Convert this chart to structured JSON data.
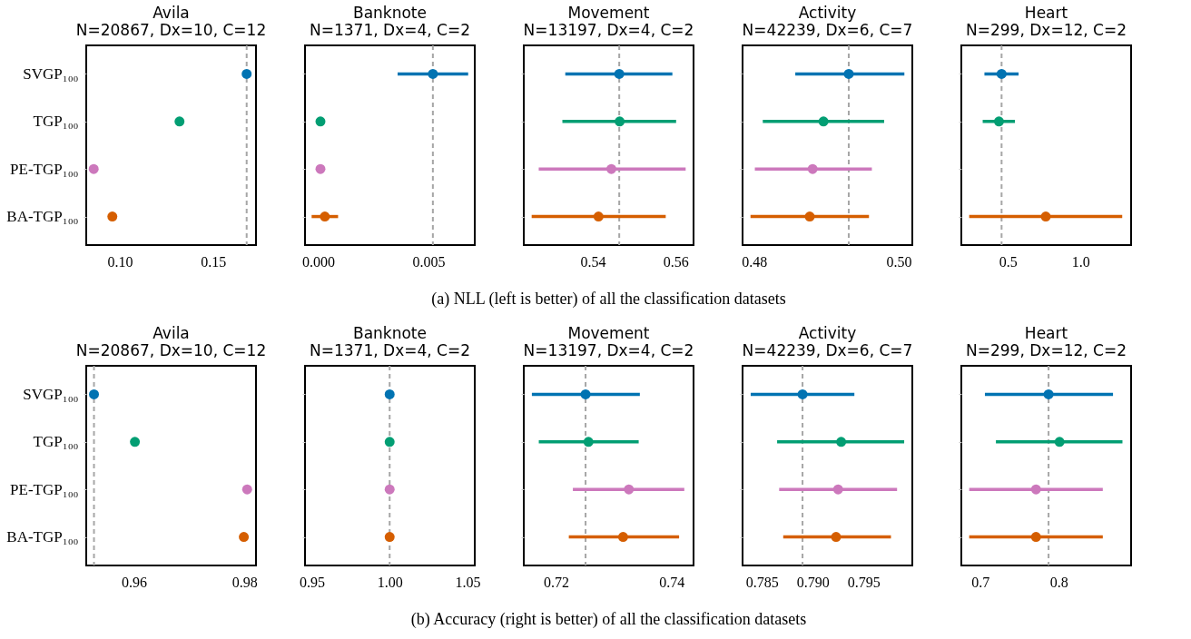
{
  "chart_data": [
    {
      "type": "scatter",
      "title": "Avila",
      "subtitle": "N=20867, Dx=10, C=12",
      "orientation": "horizontal",
      "categories": [
        "SVGP₁₀₀",
        "TGP₁₀₀",
        "PE-TGP₁₀₀",
        "BA-TGP₁₀₀"
      ],
      "values": [
        0.168,
        0.132,
        0.086,
        0.096
      ],
      "colors": [
        "#0173b2",
        "#029e73",
        "#cc78bc",
        "#d55e00"
      ],
      "xlim": [
        0.082,
        0.173
      ],
      "xticks": [
        {
          "value": 0.1,
          "label": "0.10"
        },
        {
          "value": 0.15,
          "label": "0.15"
        }
      ],
      "ref_lines": [
        {
          "axis": "x",
          "value": 0.168,
          "color": "#a6a6a6",
          "line_style": "dashed"
        }
      ],
      "marker": "circle",
      "grid": false
    },
    {
      "type": "scatter",
      "title": "Banknote",
      "subtitle": "N=1371, Dx=4, C=2",
      "orientation": "horizontal",
      "categories": [
        null,
        null,
        null,
        null
      ],
      "values": [
        0.0052,
        0.0001,
        0.0001,
        0.0003
      ],
      "errors": [
        [
          0.0036,
          0.0068
        ],
        null,
        null,
        [
          -0.0003,
          0.0009
        ]
      ],
      "colors": [
        "#0173b2",
        "#029e73",
        "#cc78bc",
        "#d55e00"
      ],
      "xlim": [
        -0.0006,
        0.0071
      ],
      "xticks": [
        {
          "value": 0,
          "label": "0.000"
        },
        {
          "value": 0.005,
          "label": "0.005"
        }
      ],
      "ref_lines": [
        {
          "axis": "x",
          "value": 0.0052,
          "color": "#a6a6a6",
          "line_style": "dashed"
        }
      ],
      "marker": "circle",
      "grid": false,
      "tick_labels": "x"
    },
    {
      "type": "scatter",
      "title": "Movement",
      "subtitle": "N=13197, Dx=4, C=2",
      "orientation": "horizontal",
      "categories": [
        null,
        null,
        null,
        null
      ],
      "values": [
        0.5464,
        0.5465,
        0.5445,
        0.5414
      ],
      "errors": [
        [
          0.5334,
          0.5592
        ],
        [
          0.5327,
          0.5601
        ],
        [
          0.527,
          0.5624
        ],
        [
          0.5253,
          0.5576
        ]
      ],
      "colors": [
        "#0173b2",
        "#029e73",
        "#cc78bc",
        "#d55e00"
      ],
      "xlim": [
        0.5234,
        0.5643
      ],
      "xticks": [
        {
          "value": 0.54,
          "label": "0.54"
        },
        {
          "value": 0.56,
          "label": "0.56"
        }
      ],
      "ref_lines": [
        {
          "axis": "x",
          "value": 0.5464,
          "color": "#a6a6a6",
          "line_style": "dashed"
        }
      ],
      "marker": "circle",
      "grid": false,
      "tick_labels": "x",
      "annotations": [
        "(a) NLL (left is better) of all the classification datasets"
      ]
    },
    {
      "type": "scatter",
      "title": "Activity",
      "subtitle": "N=42239, Dx=6, C=7",
      "orientation": "horizontal",
      "categories": [
        null,
        null,
        null,
        null
      ],
      "values": [
        0.4931,
        0.4896,
        0.4881,
        0.4877
      ],
      "errors": [
        [
          0.4857,
          0.5008
        ],
        [
          0.4812,
          0.498
        ],
        [
          0.4801,
          0.4963
        ],
        [
          0.4795,
          0.4959
        ]
      ],
      "colors": [
        "#0173b2",
        "#029e73",
        "#cc78bc",
        "#d55e00"
      ],
      "xlim": [
        0.4784,
        0.5019
      ],
      "xticks": [
        {
          "value": 0.48,
          "label": "0.48"
        },
        {
          "value": 0.5,
          "label": "0.50"
        }
      ],
      "ref_lines": [
        {
          "axis": "x",
          "value": 0.4931,
          "color": "#a6a6a6",
          "line_style": "dashed"
        }
      ],
      "marker": "circle",
      "grid": false,
      "tick_labels": "x"
    },
    {
      "type": "scatter",
      "title": "Heart",
      "subtitle": "N=299, Dx=12, C=2",
      "orientation": "horizontal",
      "categories": [
        null,
        null,
        null,
        null
      ],
      "values": [
        0.457,
        0.439,
        null,
        0.761
      ],
      "errors": [
        [
          0.339,
          0.574
        ],
        [
          0.327,
          0.549
        ],
        null,
        [
          0.234,
          1.287
        ]
      ],
      "colors": [
        "#0173b2",
        "#029e73",
        "#cc78bc",
        "#d55e00"
      ],
      "xlim": [
        0.18,
        1.348
      ],
      "xticks": [
        {
          "value": 0.5,
          "label": "0.5"
        },
        {
          "value": 1.0,
          "label": "1.0"
        }
      ],
      "ref_lines": [
        {
          "axis": "x",
          "value": 0.457,
          "color": "#a6a6a6",
          "line_style": "dashed"
        }
      ],
      "marker": "circle",
      "grid": false,
      "tick_labels": "x"
    },
    {
      "type": "scatter",
      "title": "Avila",
      "subtitle": "N=20867, Dx=10, C=12",
      "orientation": "horizontal",
      "categories": [
        "SVGP₁₀₀",
        "TGP₁₀₀",
        "PE-TGP₁₀₀",
        "BA-TGP₁₀₀"
      ],
      "values": [
        0.9528,
        0.9602,
        0.9805,
        0.9799
      ],
      "colors": [
        "#0173b2",
        "#029e73",
        "#cc78bc",
        "#d55e00"
      ],
      "xlim": [
        0.9514,
        0.9821
      ],
      "xticks": [
        {
          "value": 0.96,
          "label": "0.96"
        },
        {
          "value": 0.98,
          "label": "0.98"
        }
      ],
      "ref_lines": [
        {
          "axis": "x",
          "value": 0.9528,
          "color": "#a6a6a6",
          "line_style": "dashed"
        }
      ],
      "marker": "circle",
      "grid": false
    },
    {
      "type": "scatter",
      "title": "Banknote",
      "subtitle": "N=1371, Dx=4, C=2",
      "orientation": "horizontal",
      "categories": [
        null,
        null,
        null,
        null
      ],
      "values": [
        1.0,
        1.0,
        1.0,
        1.0
      ],
      "colors": [
        "#0173b2",
        "#029e73",
        "#cc78bc",
        "#d55e00"
      ],
      "xlim": [
        0.9456,
        1.0547
      ],
      "xticks": [
        {
          "value": 0.95,
          "label": "0.95"
        },
        {
          "value": 1.0,
          "label": "1.00"
        },
        {
          "value": 1.05,
          "label": "1.05"
        }
      ],
      "ref_lines": [
        {
          "axis": "x",
          "value": 1.0,
          "color": "#a6a6a6",
          "line_style": "dashed"
        }
      ],
      "marker": "circle",
      "grid": false,
      "tick_labels": "x"
    },
    {
      "type": "scatter",
      "title": "Movement",
      "subtitle": "N=13197, Dx=4, C=2",
      "orientation": "horizontal",
      "categories": [
        null,
        null,
        null,
        null
      ],
      "values": [
        0.7251,
        0.7256,
        0.7326,
        0.7316
      ],
      "errors": [
        [
          0.7158,
          0.7345
        ],
        [
          0.717,
          0.7343
        ],
        [
          0.7229,
          0.7422
        ],
        [
          0.7222,
          0.7413
        ]
      ],
      "colors": [
        "#0173b2",
        "#029e73",
        "#cc78bc",
        "#d55e00"
      ],
      "xlim": [
        0.7144,
        0.7438
      ],
      "xticks": [
        {
          "value": 0.72,
          "label": "0.72"
        },
        {
          "value": 0.74,
          "label": "0.74"
        }
      ],
      "ref_lines": [
        {
          "axis": "x",
          "value": 0.7251,
          "color": "#a6a6a6",
          "line_style": "dashed"
        }
      ],
      "marker": "circle",
      "grid": false,
      "tick_labels": "x",
      "annotations": [
        "(b) Accuracy (right is better) of all the classification datasets"
      ]
    },
    {
      "type": "scatter",
      "title": "Activity",
      "subtitle": "N=42239, Dx=6, C=7",
      "orientation": "horizontal",
      "categories": [
        null,
        null,
        null,
        null
      ],
      "values": [
        0.789,
        0.7928,
        0.7925,
        0.7923
      ],
      "errors": [
        [
          0.7839,
          0.7941
        ],
        [
          0.7865,
          0.799
        ],
        [
          0.7867,
          0.7983
        ],
        [
          0.7871,
          0.7977
        ]
      ],
      "colors": [
        "#0173b2",
        "#029e73",
        "#cc78bc",
        "#d55e00"
      ],
      "xlim": [
        0.7831,
        0.7998
      ],
      "xticks": [
        {
          "value": 0.785,
          "label": "0.785"
        },
        {
          "value": 0.79,
          "label": "0.790"
        },
        {
          "value": 0.795,
          "label": "0.795"
        }
      ],
      "ref_lines": [
        {
          "axis": "x",
          "value": 0.789,
          "color": "#a6a6a6",
          "line_style": "dashed"
        }
      ],
      "marker": "circle",
      "grid": false,
      "tick_labels": "x"
    },
    {
      "type": "scatter",
      "title": "Heart",
      "subtitle": "N=299, Dx=12, C=2",
      "orientation": "horizontal",
      "categories": [
        null,
        null,
        null,
        null
      ],
      "values": [
        0.787,
        0.801,
        0.771,
        0.771
      ],
      "errors": [
        [
          0.706,
          0.869
        ],
        [
          0.72,
          0.881
        ],
        [
          0.686,
          0.856
        ],
        [
          0.686,
          0.856
        ]
      ],
      "colors": [
        "#0173b2",
        "#029e73",
        "#cc78bc",
        "#d55e00"
      ],
      "xlim": [
        0.676,
        0.892
      ],
      "xticks": [
        {
          "value": 0.7,
          "label": "0.7"
        },
        {
          "value": 0.8,
          "label": "0.8"
        }
      ],
      "ref_lines": [
        {
          "axis": "x",
          "value": 0.787,
          "color": "#a6a6a6",
          "line_style": "dashed"
        }
      ],
      "marker": "circle",
      "grid": false,
      "tick_labels": "x"
    }
  ]
}
